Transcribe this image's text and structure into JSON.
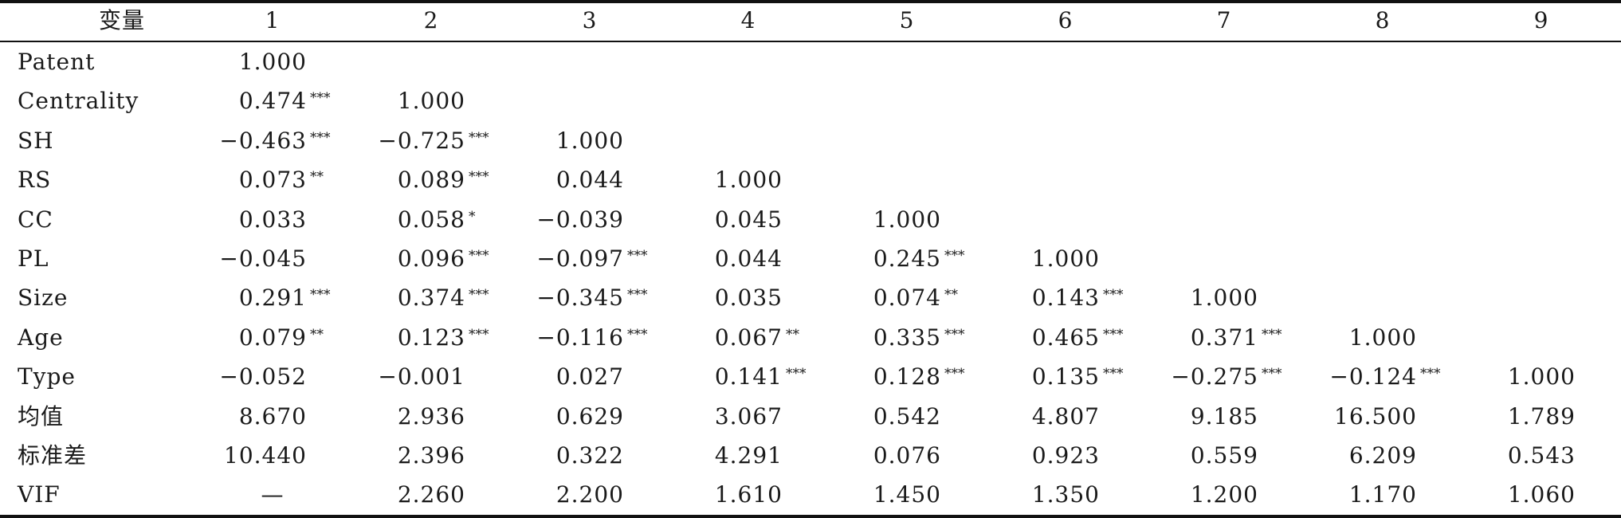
{
  "table": {
    "header": [
      "变量",
      "1",
      "2",
      "3",
      "4",
      "5",
      "6",
      "7",
      "8",
      "9"
    ],
    "rows": [
      {
        "label": "Patent",
        "cells": [
          {
            "v": "1.000",
            "s": ""
          },
          null,
          null,
          null,
          null,
          null,
          null,
          null,
          null
        ]
      },
      {
        "label": "Centrality",
        "cells": [
          {
            "v": "0.474",
            "s": "***"
          },
          {
            "v": "1.000",
            "s": ""
          },
          null,
          null,
          null,
          null,
          null,
          null,
          null
        ]
      },
      {
        "label": "SH",
        "cells": [
          {
            "v": "−0.463",
            "s": "***"
          },
          {
            "v": "−0.725",
            "s": "***"
          },
          {
            "v": "1.000",
            "s": ""
          },
          null,
          null,
          null,
          null,
          null,
          null
        ]
      },
      {
        "label": "RS",
        "cells": [
          {
            "v": "0.073",
            "s": "**"
          },
          {
            "v": "0.089",
            "s": "***"
          },
          {
            "v": "0.044",
            "s": ""
          },
          {
            "v": "1.000",
            "s": ""
          },
          null,
          null,
          null,
          null,
          null
        ]
      },
      {
        "label": "CC",
        "cells": [
          {
            "v": "0.033",
            "s": ""
          },
          {
            "v": "0.058",
            "s": "*"
          },
          {
            "v": "−0.039",
            "s": ""
          },
          {
            "v": "0.045",
            "s": ""
          },
          {
            "v": "1.000",
            "s": ""
          },
          null,
          null,
          null,
          null
        ]
      },
      {
        "label": "PL",
        "cells": [
          {
            "v": "−0.045",
            "s": ""
          },
          {
            "v": "0.096",
            "s": "***"
          },
          {
            "v": "−0.097",
            "s": "***"
          },
          {
            "v": "0.044",
            "s": ""
          },
          {
            "v": "0.245",
            "s": "***"
          },
          {
            "v": "1.000",
            "s": ""
          },
          null,
          null,
          null
        ]
      },
      {
        "label": "Size",
        "cells": [
          {
            "v": "0.291",
            "s": "***"
          },
          {
            "v": "0.374",
            "s": "***"
          },
          {
            "v": "−0.345",
            "s": "***"
          },
          {
            "v": "0.035",
            "s": ""
          },
          {
            "v": "0.074",
            "s": "**"
          },
          {
            "v": "0.143",
            "s": "***"
          },
          {
            "v": "1.000",
            "s": ""
          },
          null,
          null
        ]
      },
      {
        "label": "Age",
        "cells": [
          {
            "v": "0.079",
            "s": "**"
          },
          {
            "v": "0.123",
            "s": "***"
          },
          {
            "v": "−0.116",
            "s": "***"
          },
          {
            "v": "0.067",
            "s": "**"
          },
          {
            "v": "0.335",
            "s": "***"
          },
          {
            "v": "0.465",
            "s": "***"
          },
          {
            "v": "0.371",
            "s": "***"
          },
          {
            "v": "1.000",
            "s": ""
          },
          null
        ]
      },
      {
        "label": "Type",
        "cells": [
          {
            "v": "−0.052",
            "s": ""
          },
          {
            "v": "−0.001",
            "s": ""
          },
          {
            "v": "0.027",
            "s": ""
          },
          {
            "v": "0.141",
            "s": "***"
          },
          {
            "v": "0.128",
            "s": "***"
          },
          {
            "v": "0.135",
            "s": "***"
          },
          {
            "v": "−0.275",
            "s": "***"
          },
          {
            "v": "−0.124",
            "s": "***"
          },
          {
            "v": "1.000",
            "s": ""
          }
        ]
      },
      {
        "label": "均值",
        "cells": [
          {
            "v": "8.670",
            "s": ""
          },
          {
            "v": "2.936",
            "s": ""
          },
          {
            "v": "0.629",
            "s": ""
          },
          {
            "v": "3.067",
            "s": ""
          },
          {
            "v": "0.542",
            "s": ""
          },
          {
            "v": "4.807",
            "s": ""
          },
          {
            "v": "9.185",
            "s": ""
          },
          {
            "v": "16.500",
            "s": ""
          },
          {
            "v": "1.789",
            "s": ""
          }
        ]
      },
      {
        "label": "标准差",
        "cells": [
          {
            "v": "10.440",
            "s": ""
          },
          {
            "v": "2.396",
            "s": ""
          },
          {
            "v": "0.322",
            "s": ""
          },
          {
            "v": "4.291",
            "s": ""
          },
          {
            "v": "0.076",
            "s": ""
          },
          {
            "v": "0.923",
            "s": ""
          },
          {
            "v": "0.559",
            "s": ""
          },
          {
            "v": "6.209",
            "s": ""
          },
          {
            "v": "0.543",
            "s": ""
          }
        ]
      },
      {
        "label": "VIF",
        "cells": [
          {
            "v": "—",
            "s": "",
            "center": true
          },
          {
            "v": "2.260",
            "s": ""
          },
          {
            "v": "2.200",
            "s": ""
          },
          {
            "v": "1.610",
            "s": ""
          },
          {
            "v": "1.450",
            "s": ""
          },
          {
            "v": "1.350",
            "s": ""
          },
          {
            "v": "1.200",
            "s": ""
          },
          {
            "v": "1.170",
            "s": ""
          },
          {
            "v": "1.060",
            "s": ""
          }
        ]
      }
    ]
  }
}
